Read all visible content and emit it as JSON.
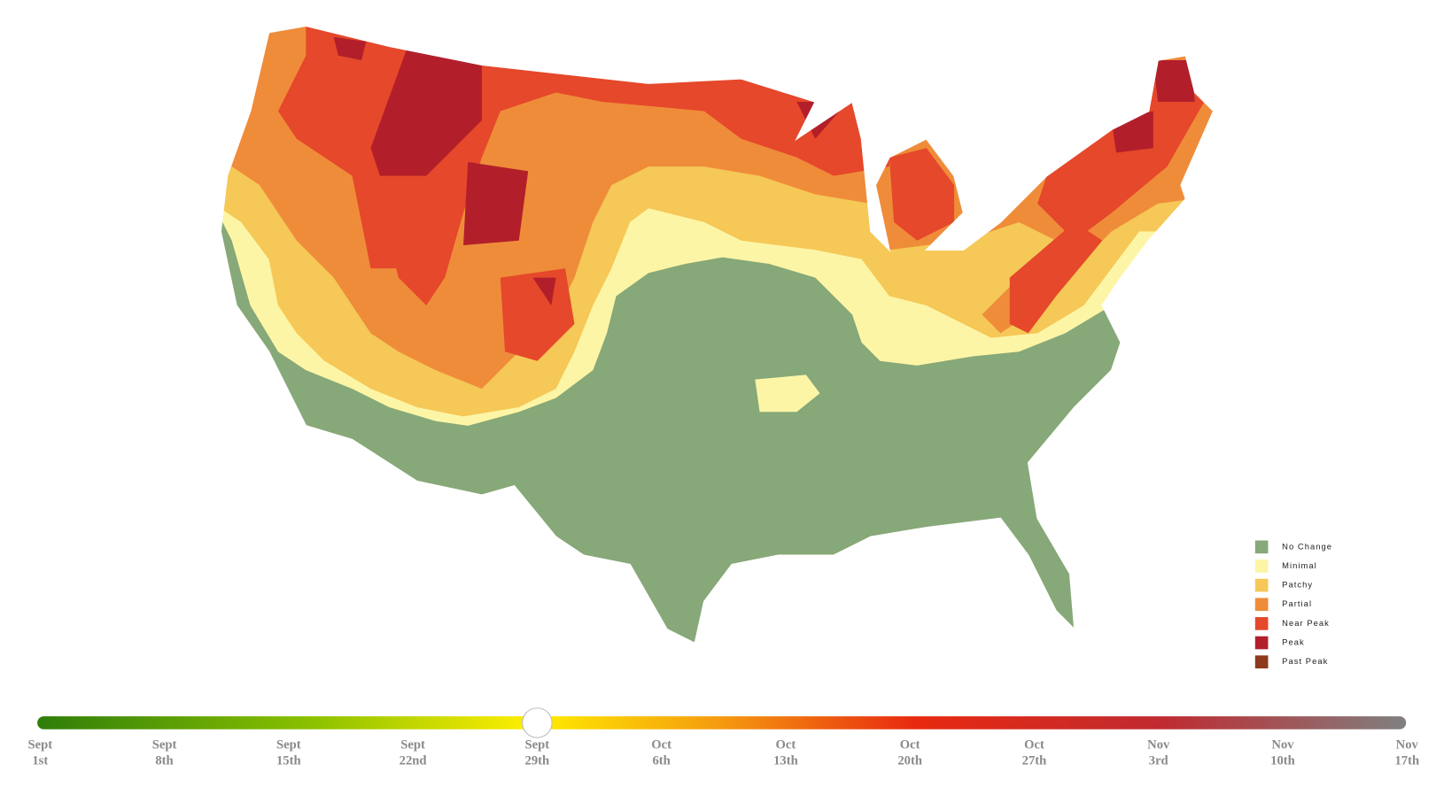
{
  "legend": {
    "items": [
      {
        "label": "No Change",
        "color": "#87a878"
      },
      {
        "label": "Minimal",
        "color": "#fdf5a6"
      },
      {
        "label": "Patchy",
        "color": "#f5c857"
      },
      {
        "label": "Partial",
        "color": "#ef8c3a"
      },
      {
        "label": "Near Peak",
        "color": "#e5482a"
      },
      {
        "label": "Peak",
        "color": "#b21f2a"
      },
      {
        "label": "Past Peak",
        "color": "#8b3a1c"
      }
    ]
  },
  "timeline": {
    "ticks": [
      {
        "month": "Sept",
        "day": "1st"
      },
      {
        "month": "Sept",
        "day": "8th"
      },
      {
        "month": "Sept",
        "day": "15th"
      },
      {
        "month": "Sept",
        "day": "22nd"
      },
      {
        "month": "Sept",
        "day": "29th"
      },
      {
        "month": "Oct",
        "day": "6th"
      },
      {
        "month": "Oct",
        "day": "13th"
      },
      {
        "month": "Oct",
        "day": "20th"
      },
      {
        "month": "Oct",
        "day": "27th"
      },
      {
        "month": "Nov",
        "day": "3rd"
      },
      {
        "month": "Nov",
        "day": "10th"
      },
      {
        "month": "Nov",
        "day": "17th"
      }
    ]
  }
}
